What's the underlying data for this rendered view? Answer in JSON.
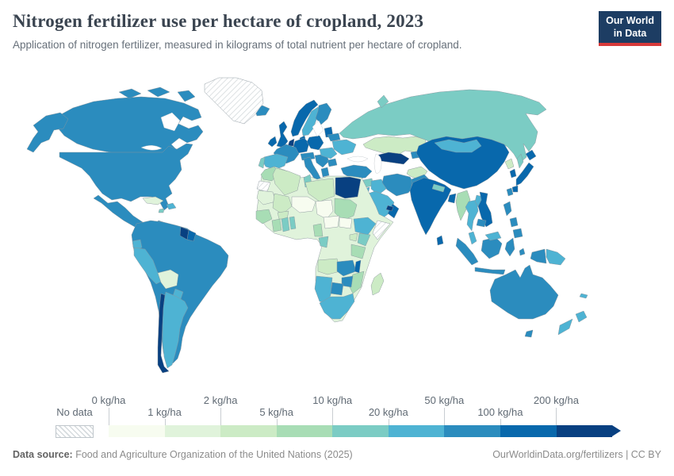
{
  "header": {
    "title": "Nitrogen fertilizer use per hectare of cropland, 2023",
    "subtitle": "Application of nitrogen fertilizer, measured in kilograms of total nutrient per hectare of cropland.",
    "logo": {
      "line1": "Our World",
      "line2": "in Data",
      "bg_color": "#1d3d63",
      "accent_color": "#d73a3a"
    }
  },
  "legend": {
    "no_data_label": "No data",
    "tick_labels": [
      "0 kg/ha",
      "1 kg/ha",
      "2 kg/ha",
      "5 kg/ha",
      "10 kg/ha",
      "20 kg/ha",
      "50 kg/ha",
      "100 kg/ha",
      "200 kg/ha"
    ]
  },
  "footer": {
    "source_label": "Data source:",
    "source_text": " Food and Agriculture Organization of the United Nations (2025)",
    "link_text": "OurWorldinData.org/fertilizers | CC BY"
  },
  "chart_data": {
    "type": "heatmap",
    "subtype": "world-choropleth",
    "title": "Nitrogen fertilizer use per hectare of cropland, 2023",
    "unit": "kg/ha",
    "bin_edges": [
      0,
      1,
      2,
      5,
      10,
      20,
      50,
      100,
      200
    ],
    "bin_labels": [
      "0-1",
      "1-2",
      "2-5",
      "5-10",
      "10-20",
      "20-50",
      "50-100",
      "100-200",
      "200+"
    ],
    "palette": [
      "#f7fcf0",
      "#e0f3db",
      "#ccebc5",
      "#a8ddb5",
      "#7bccc4",
      "#4eb3d3",
      "#2b8cbe",
      "#0868ac",
      "#084081"
    ],
    "no_data_style": "gray-diagonal-hatch",
    "legend_position": "bottom",
    "region_bins": {
      "greenland": "no_data",
      "western-sahara": "no_data",
      "somalia": "no_data",
      "canada": 6,
      "united-states": 6,
      "mexico": 6,
      "cuba": 1,
      "hispaniola": 5,
      "jamaica": 4,
      "guatemala-belize": 7,
      "honduras-nicaragua": 5,
      "costa-rica-panama": 6,
      "brazil": 6,
      "guyana": 8,
      "suriname": 7,
      "ecuador": 5,
      "peru": 5,
      "bolivia": 1,
      "paraguay": 5,
      "argentina": 5,
      "chile": 8,
      "iceland": 6,
      "norway": 7,
      "sweden": 5,
      "finland": 6,
      "baltic-states": 7,
      "united-kingdom": 7,
      "ireland": 7,
      "denmark": 7,
      "germany": 7,
      "benelux": 8,
      "poland": 7,
      "france": 6,
      "spain": 5,
      "portugal": 4,
      "central-europe": 6,
      "italy": 6,
      "balkans": 6,
      "greece": 6,
      "hungary-romania": 5,
      "bulgaria": 6,
      "ukraine": 5,
      "belarus": 6,
      "russia": 4,
      "kazakhstan": 2,
      "turkmenistan-uzbekistan": 8,
      "kyrgyzstan-tajikistan": 6,
      "turkey": 6,
      "syria": 4,
      "lebanon-israel": 8,
      "jordan": 5,
      "iraq": 5,
      "iran": 6,
      "saudi-arabia": 5,
      "yemen": 4,
      "oman": 7,
      "uae-qatar": 8,
      "afghanistan": 2,
      "pakistan": 6,
      "china": 7,
      "mongolia": 5,
      "north-korea": 2,
      "south-korea": 7,
      "japan": 7,
      "taiwan": 6,
      "india": 7,
      "nepal": 4,
      "bangladesh": 7,
      "sri-lanka": 7,
      "myanmar": 3,
      "thailand": 5,
      "laos": 5,
      "vietnam": 7,
      "cambodia": 6,
      "malaysia": 5,
      "indonesia": 6,
      "philippines": 6,
      "papua-new-guinea": 5,
      "morocco": 3,
      "algeria": 2,
      "tunisia": 4,
      "libya": 2,
      "egypt": 8,
      "mauritania": 1,
      "mali": 2,
      "niger": 0,
      "chad": 0,
      "sudan": 3,
      "ethiopia": 5,
      "senegal-guinea": 3,
      "cote-divoire": 3,
      "ghana": 4,
      "benin-togo": 4,
      "burkina-faso": 2,
      "cameroon": 3,
      "gabon-congo": 4,
      "central-african-republic": 0,
      "south-sudan": 0,
      "uganda": 2,
      "kenya": 4,
      "tanzania": 3,
      "angola": 2,
      "zambia": 6,
      "malawi": 7,
      "mozambique": 3,
      "zimbabwe": 6,
      "namibia": 5,
      "botswana": 6,
      "south-africa": 5,
      "madagascar": 2,
      "africa-other": 1,
      "australia": 6,
      "tasmania": 6,
      "new-zealand": 5,
      "new-caledonia": 5
    }
  }
}
